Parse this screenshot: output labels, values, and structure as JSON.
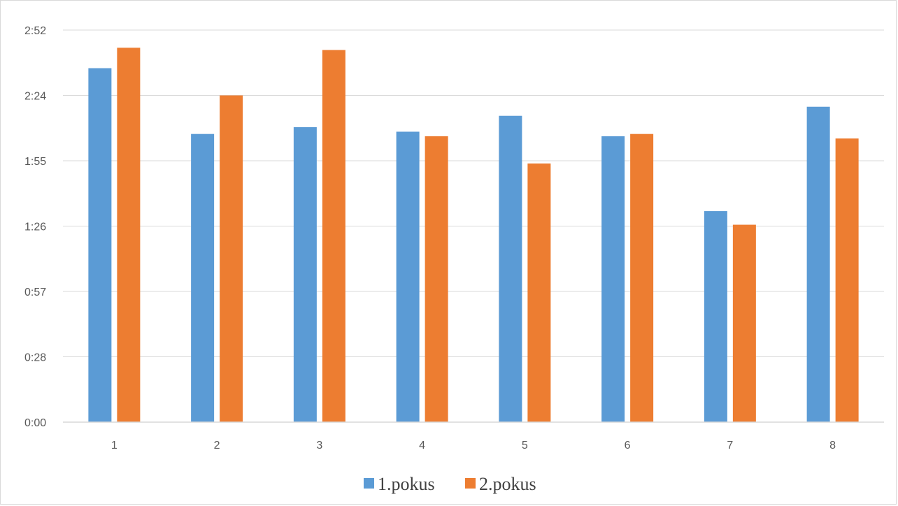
{
  "chart_data": {
    "type": "bar",
    "categories": [
      "1",
      "2",
      "3",
      "4",
      "5",
      "6",
      "7",
      "8"
    ],
    "series": [
      {
        "name": "1.pokus",
        "color": "#5b9bd5",
        "values_seconds": [
          156,
          127,
          130,
          128,
          135,
          126,
          93,
          139
        ],
        "values": [
          "2:36",
          "2:07",
          "2:10",
          "2:08",
          "2:15",
          "2:06",
          "1:33",
          "2:19"
        ]
      },
      {
        "name": "2.pokus",
        "color": "#ed7d31",
        "values_seconds": [
          165,
          144,
          164,
          126,
          114,
          127,
          87,
          125
        ],
        "values": [
          "2:45",
          "2:24",
          "2:44",
          "2:06",
          "1:54",
          "2:07",
          "1:27",
          "2:05"
        ]
      }
    ],
    "y_ticks": [
      "0:00",
      "0:28",
      "0:57",
      "1:26",
      "1:55",
      "2:24",
      "2:52"
    ],
    "y_tick_seconds": [
      0,
      28.8,
      57.6,
      86.4,
      115.2,
      144,
      172.8
    ],
    "ylim": [
      0,
      172.8
    ],
    "title": "",
    "xlabel": "",
    "ylabel": "",
    "grid": true,
    "legend_position": "bottom",
    "gridline_color": "#d9d9d9"
  }
}
